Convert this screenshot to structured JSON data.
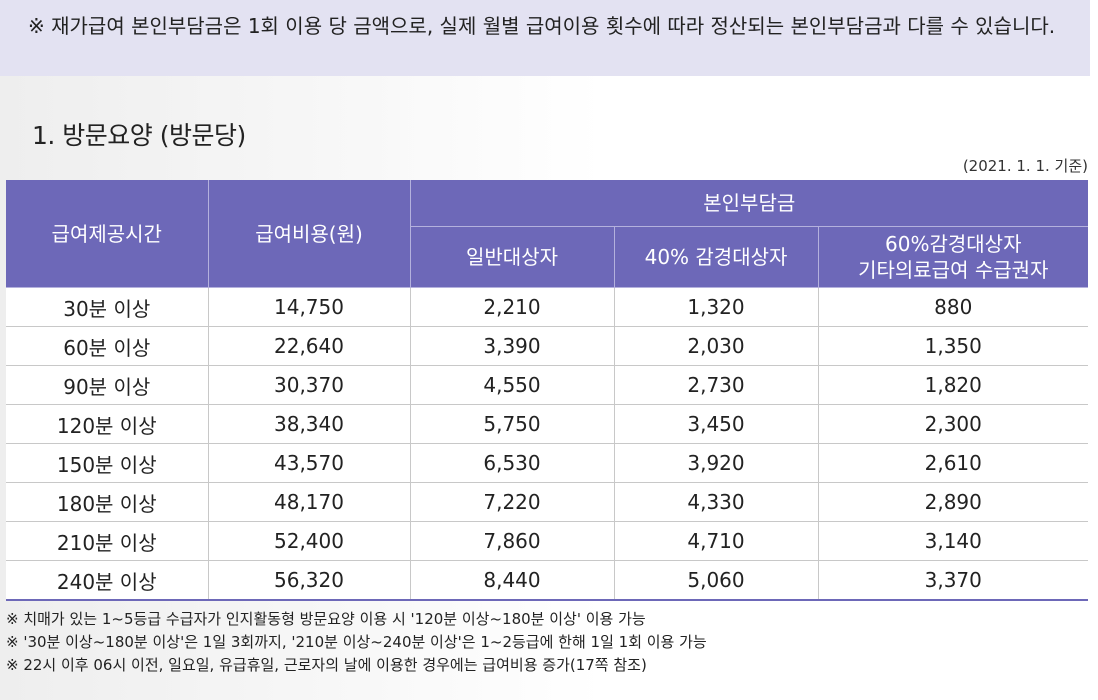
{
  "notice": "※ 재가급여 본인부담금은 1회 이용 당 금액으로, 실제 월별 급여이용 횟수에 따라 정산되는 본인부담금과 다를 수 있습니다.",
  "section_title": "1. 방문요양 (방문당)",
  "basis_date": "(2021. 1. 1. 기준)",
  "table": {
    "headers": {
      "time": "급여제공시간",
      "cost": "급여비용(원)",
      "copay_group": "본인부담금",
      "general": "일반대상자",
      "reduced40": "40% 감경대상자",
      "reduced60_line1": "60%감경대상자",
      "reduced60_line2": "기타의료급여 수급권자"
    },
    "rows": [
      [
        "30분 이상",
        "14,750",
        "2,210",
        "1,320",
        "880"
      ],
      [
        "60분 이상",
        "22,640",
        "3,390",
        "2,030",
        "1,350"
      ],
      [
        "90분 이상",
        "30,370",
        "4,550",
        "2,730",
        "1,820"
      ],
      [
        "120분 이상",
        "38,340",
        "5,750",
        "3,450",
        "2,300"
      ],
      [
        "150분 이상",
        "43,570",
        "6,530",
        "3,920",
        "2,610"
      ],
      [
        "180분 이상",
        "48,170",
        "7,220",
        "4,330",
        "2,890"
      ],
      [
        "210분 이상",
        "52,400",
        "7,860",
        "4,710",
        "3,140"
      ],
      [
        "240분 이상",
        "56,320",
        "8,440",
        "5,060",
        "3,370"
      ]
    ]
  },
  "notes": [
    "※ 치매가 있는 1~5등급 수급자가 인지활동형 방문요양 이용 시 '120분 이상~180분 이상' 이용 가능",
    "※ '30분 이상~180분 이상'은 1일 3회까지, '210분 이상~240분 이상'은 1~2등급에 한해 1일 1회 이용 가능",
    "※ 22시 이후 06시 이전, 일요일, 유급휴일, 근로자의 날에 이용한 경우에는 급여비용 증가(17쪽 참조)"
  ]
}
